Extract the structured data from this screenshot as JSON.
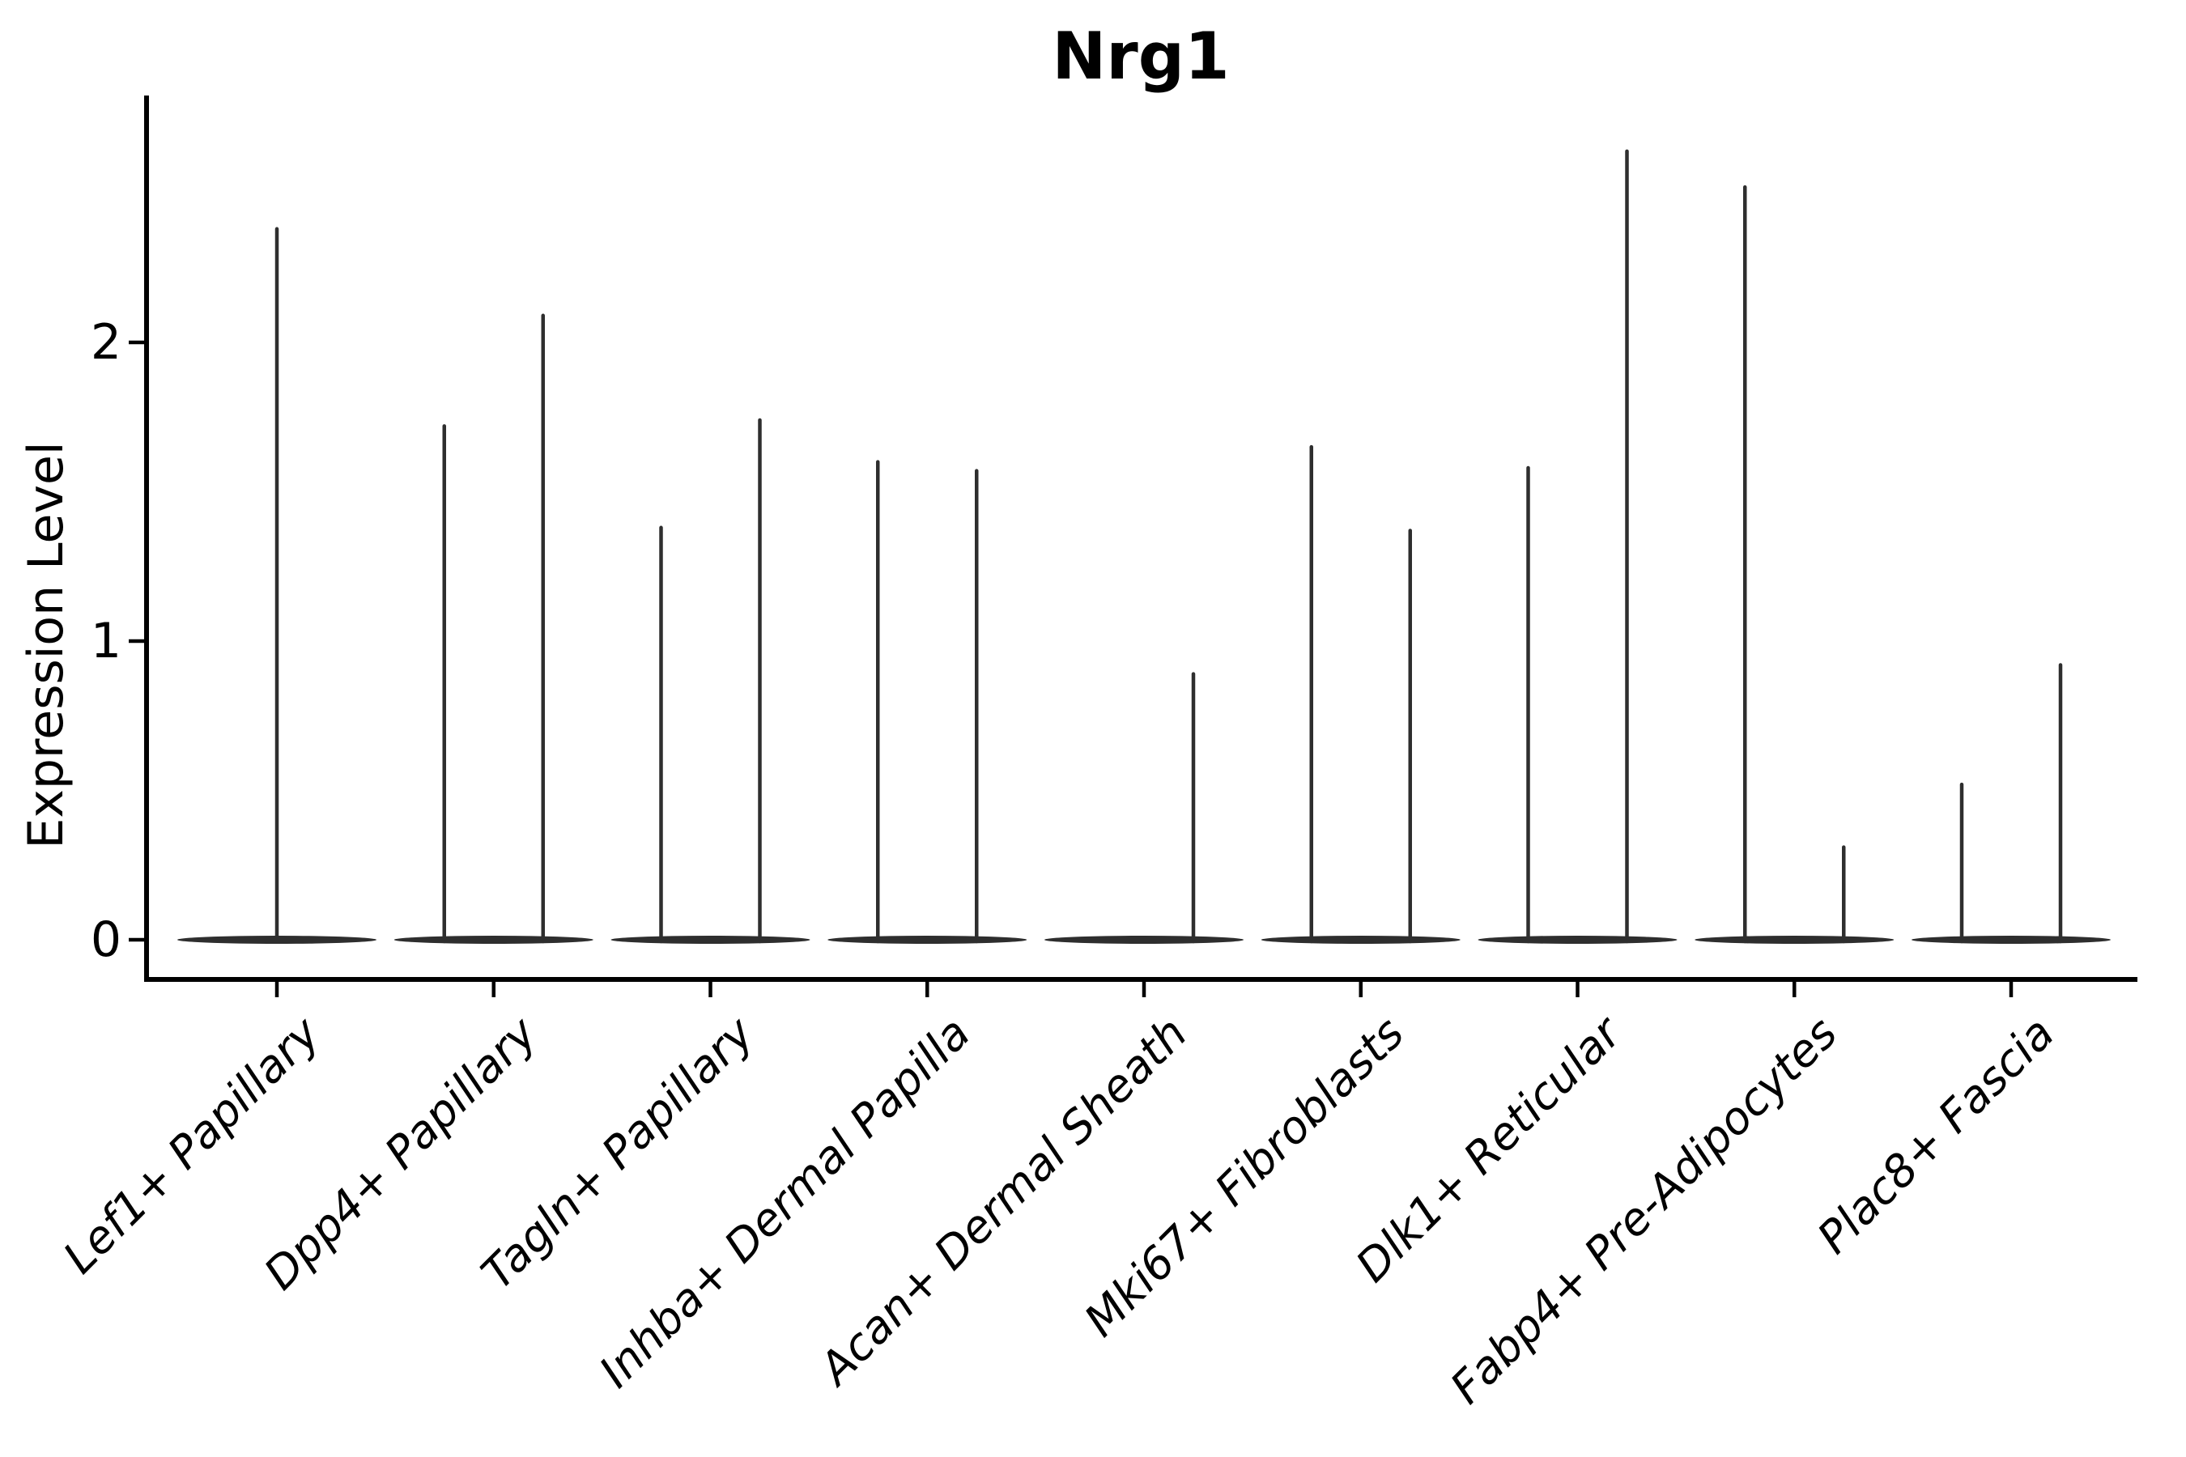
{
  "figure": {
    "title": "Nrg1",
    "background_color": "#ffffff",
    "text_color": "#000000",
    "violin_color": "#2e2e2e",
    "axis_color": "#000000"
  },
  "chart_data": {
    "type": "violin",
    "title": "Nrg1",
    "xlabel": "",
    "ylabel": "Expression Level",
    "y_ticks": [
      "0",
      "1",
      "2"
    ],
    "ylim": [
      -0.13,
      2.83
    ],
    "grid": false,
    "legend": "none",
    "x_tick_label_style": "italic, rotated 45deg",
    "categories": [
      "Lef1+ Papillary",
      "Dpp4+ Papillary",
      "Tagln+ Papillary",
      "Inhba+ Dermal Papilla",
      "Acan+ Dermal Sheath",
      "Mki67+ Fibroblasts",
      "Dlk1+ Reticular",
      "Fabp4+ Pre-Adipocytes",
      "Plac8+ Fascia"
    ],
    "violins": [
      {
        "category": "Lef1+ Papillary",
        "groups": [
          {
            "position": "center",
            "max_expression": 2.38
          }
        ]
      },
      {
        "category": "Dpp4+ Papillary",
        "groups": [
          {
            "position": "left",
            "max_expression": 1.72
          },
          {
            "position": "right",
            "max_expression": 2.09
          }
        ]
      },
      {
        "category": "Tagln+ Papillary",
        "groups": [
          {
            "position": "left",
            "max_expression": 1.38
          },
          {
            "position": "right",
            "max_expression": 1.74
          }
        ]
      },
      {
        "category": "Inhba+ Dermal Papilla",
        "groups": [
          {
            "position": "left",
            "max_expression": 1.6
          },
          {
            "position": "right",
            "max_expression": 1.57
          }
        ]
      },
      {
        "category": "Acan+ Dermal Sheath",
        "groups": [
          {
            "position": "right",
            "max_expression": 0.89
          }
        ]
      },
      {
        "category": "Mki67+ Fibroblasts",
        "groups": [
          {
            "position": "left",
            "max_expression": 1.65
          },
          {
            "position": "right",
            "max_expression": 1.37
          }
        ]
      },
      {
        "category": "Dlk1+ Reticular",
        "groups": [
          {
            "position": "left",
            "max_expression": 1.58
          },
          {
            "position": "right",
            "max_expression": 2.64
          }
        ]
      },
      {
        "category": "Fabp4+ Pre-Adipocytes",
        "groups": [
          {
            "position": "left",
            "max_expression": 2.52
          },
          {
            "position": "right",
            "max_expression": 0.31
          }
        ]
      },
      {
        "category": "Plac8+ Fascia",
        "groups": [
          {
            "position": "left",
            "max_expression": 0.52
          },
          {
            "position": "right",
            "max_expression": 0.92
          }
        ]
      }
    ],
    "baseline_value": 0
  }
}
